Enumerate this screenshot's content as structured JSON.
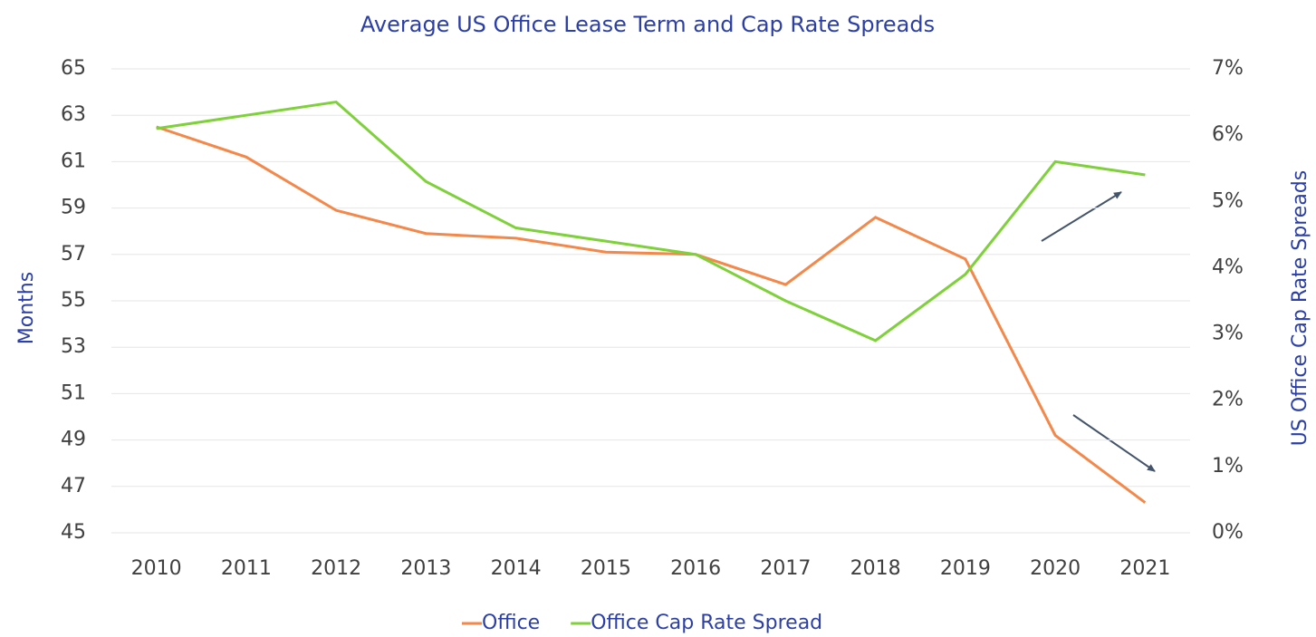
{
  "chart_data": {
    "type": "line",
    "title": "Average US Office Lease Term and Cap Rate Spreads",
    "ylabel": "Months",
    "y2label": "US Office Cap Rate Spreads",
    "categories": [
      "2010",
      "2011",
      "2012",
      "2013",
      "2014",
      "2015",
      "2016",
      "2017",
      "2018",
      "2019",
      "2020",
      "2021"
    ],
    "series": [
      {
        "name": "Office",
        "color": "#f4884a",
        "values": [
          62.5,
          61.2,
          58.9,
          57.9,
          57.7,
          57.1,
          57.0,
          55.7,
          58.6,
          56.8,
          49.2,
          46.3
        ]
      },
      {
        "name": "Office Cap Rate Spread",
        "color": "#7fd13b",
        "axis": "y2",
        "values": [
          6.1,
          6.3,
          6.5,
          5.3,
          4.6,
          4.4,
          4.2,
          3.5,
          2.9,
          3.9,
          5.6,
          5.4
        ]
      }
    ],
    "ylim": [
      45,
      65
    ],
    "yticks": [
      45,
      47,
      49,
      51,
      53,
      55,
      57,
      59,
      61,
      63,
      65
    ],
    "y2lim": [
      0,
      7
    ],
    "y2ticks": [
      {
        "value": 0,
        "label": "0%"
      },
      {
        "value": 1,
        "label": "1%"
      },
      {
        "value": 2,
        "label": "2%"
      },
      {
        "value": 3,
        "label": "3%"
      },
      {
        "value": 4,
        "label": "4%"
      },
      {
        "value": 5,
        "label": "5%"
      },
      {
        "value": 6,
        "label": "6%"
      },
      {
        "value": 7,
        "label": "7%"
      }
    ],
    "grid": true,
    "legend": "bottom"
  }
}
